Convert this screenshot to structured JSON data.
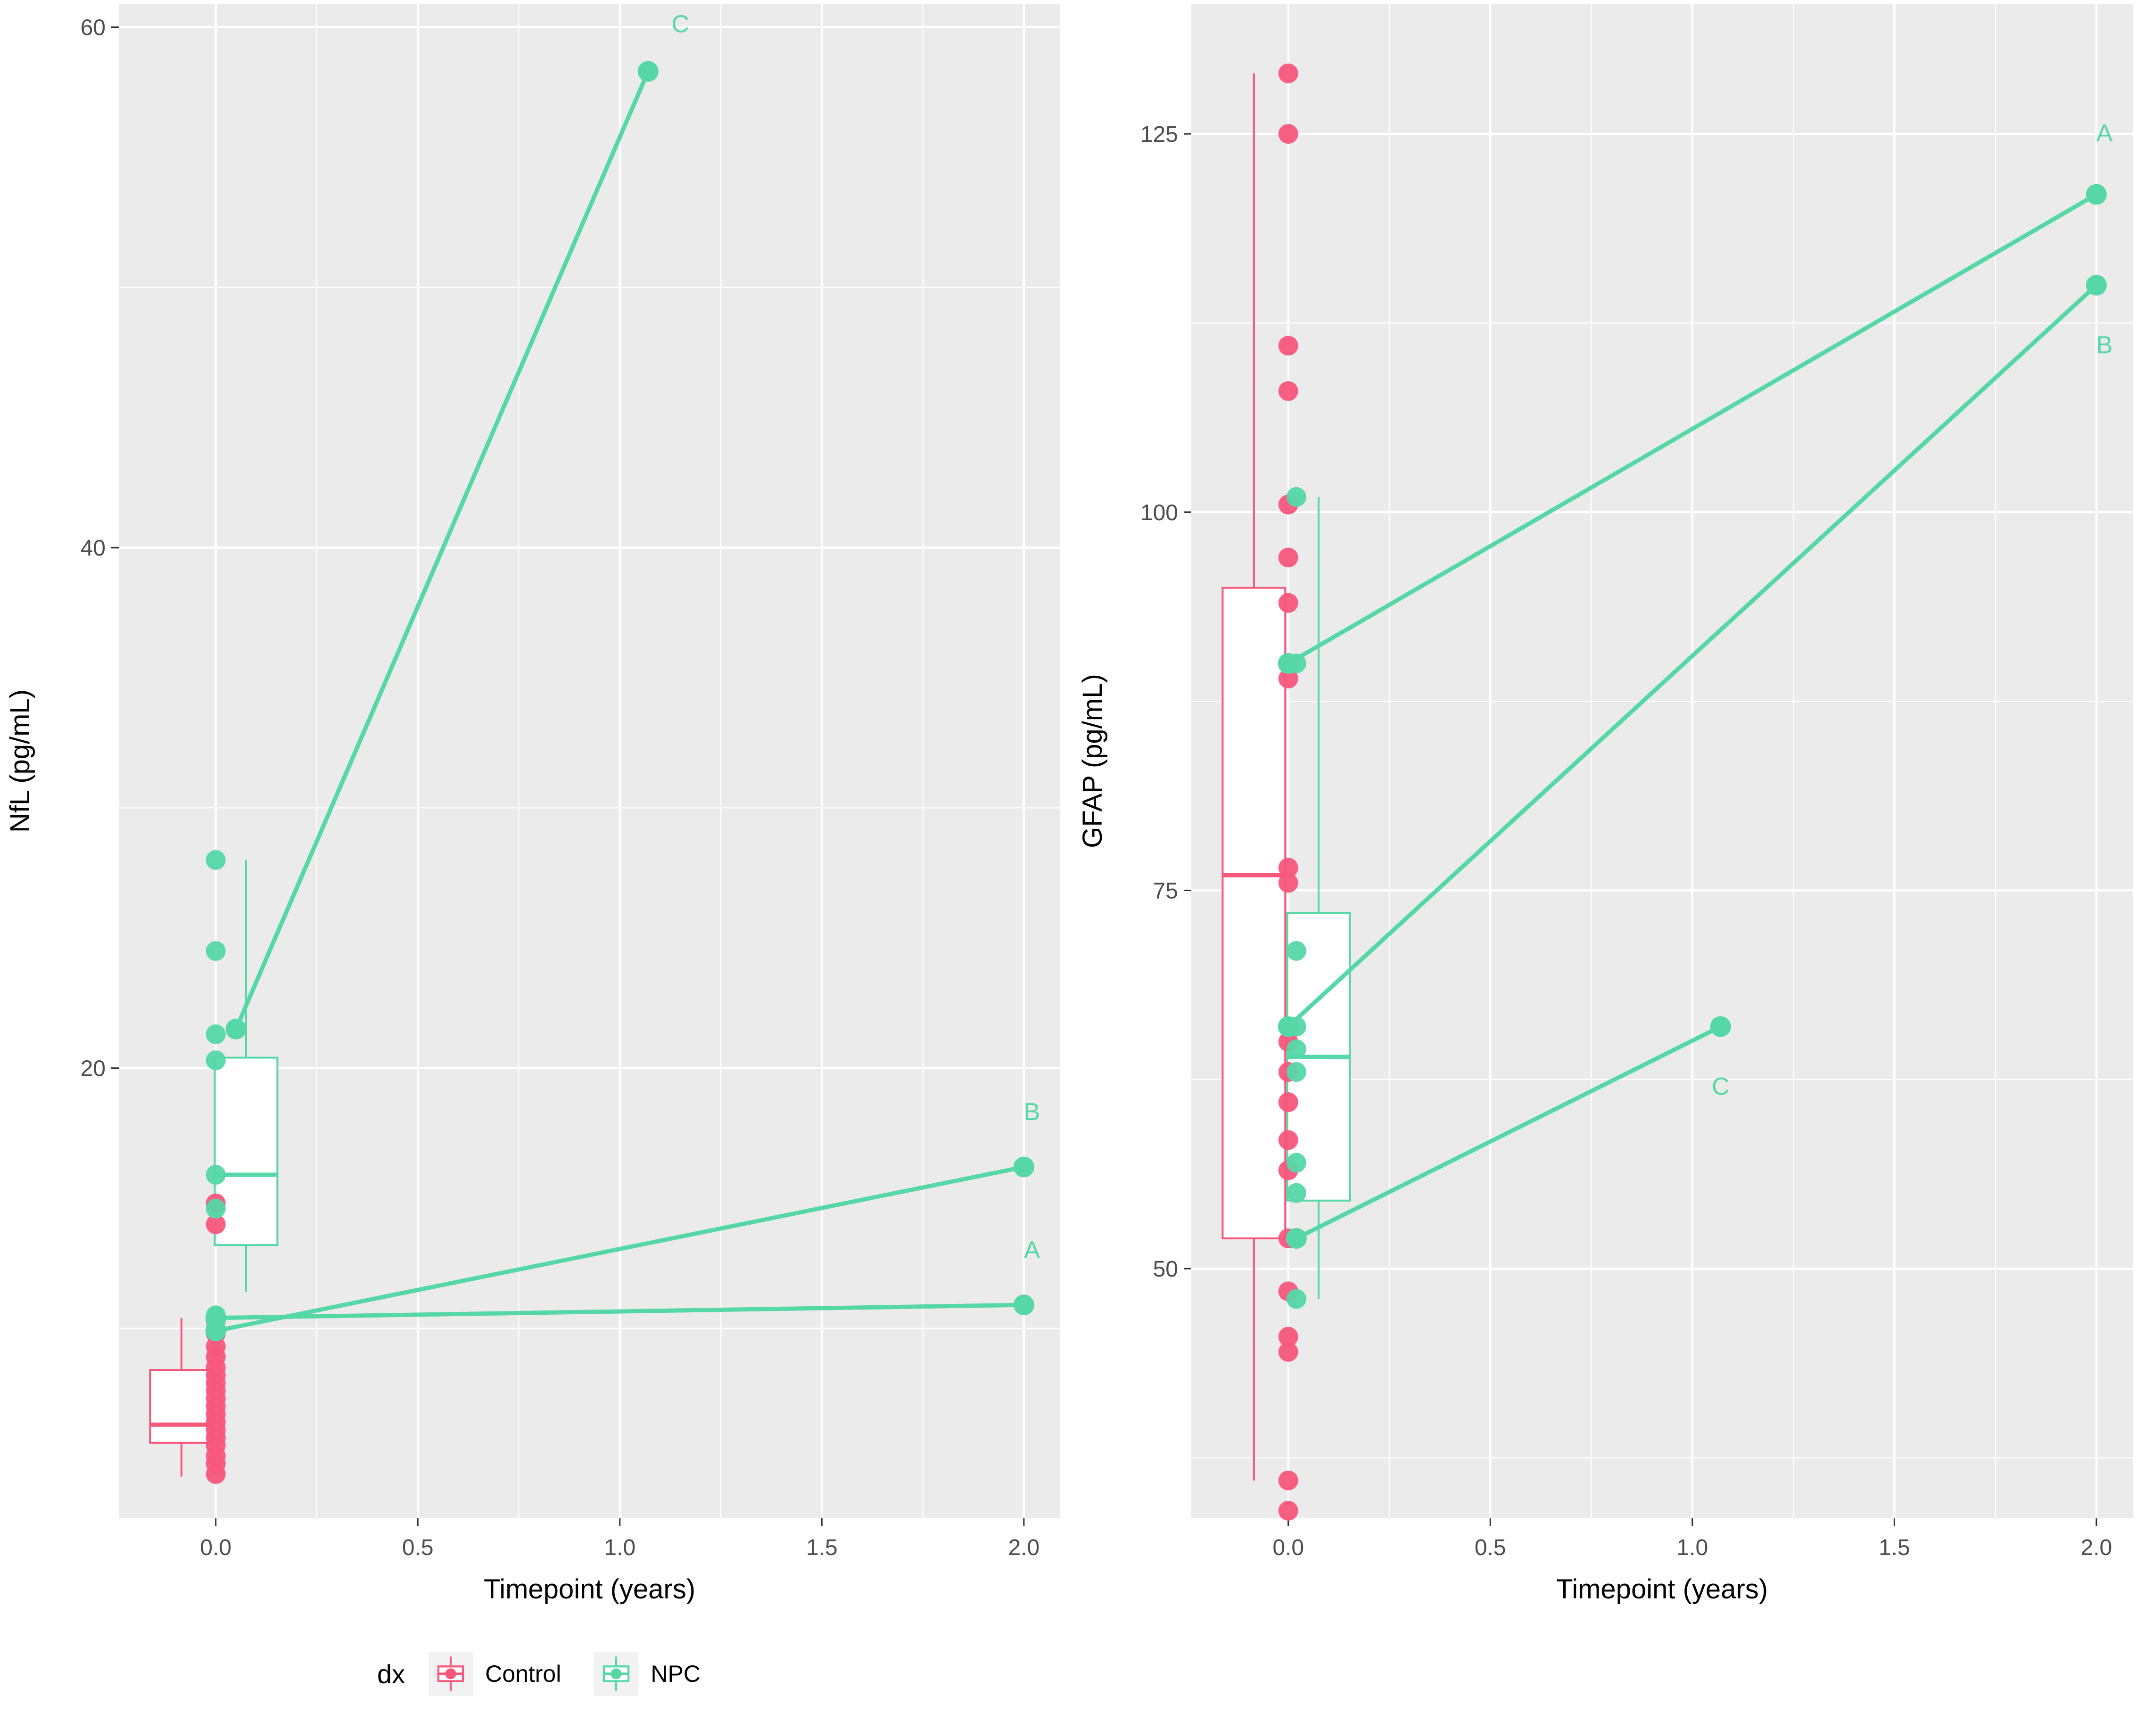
{
  "figure": {
    "background": "#FFFFFF"
  },
  "palette": {
    "control": "#F8577C",
    "npc": "#55D7A6",
    "panel_bg": "#EBEBEB",
    "grid": "#FFFFFF",
    "tick_text": "#4D4D4D",
    "axis_text": "#000000",
    "box_fill": "#FFFFFF"
  },
  "legend": {
    "title": "dx",
    "items": [
      {
        "id": "control",
        "label": "Control",
        "color": "#F8577C"
      },
      {
        "id": "npc",
        "label": "NPC",
        "color": "#55D7A6"
      }
    ]
  },
  "chart_data": [
    {
      "name": "nfl",
      "type": "boxplot-scatter-lines",
      "title": "",
      "xlabel": "Timepoint (years)",
      "ylabel": "NfL (pg/mL)",
      "xlim": [
        -0.24,
        2.09
      ],
      "ylim": [
        2.7,
        60.9
      ],
      "xticks": [
        [
          0.0,
          "0.0"
        ],
        [
          0.5,
          "0.5"
        ],
        [
          1.0,
          "1.0"
        ],
        [
          1.5,
          "1.5"
        ],
        [
          2.0,
          "2.0"
        ]
      ],
      "yticks": [
        [
          20,
          "20"
        ],
        [
          40,
          "40"
        ],
        [
          60,
          "60"
        ]
      ],
      "x_minor": [
        0.25,
        0.75,
        1.25,
        1.75
      ],
      "y_minor": [
        10,
        30,
        50
      ],
      "boxes": [
        {
          "group": "Control",
          "color_key": "control",
          "x": -0.085,
          "width": 0.155,
          "lower_whisker": 4.3,
          "q1": 5.6,
          "median": 6.3,
          "q3": 8.4,
          "upper_whisker": 10.4
        },
        {
          "group": "NPC",
          "color_key": "npc",
          "x": 0.075,
          "width": 0.155,
          "lower_whisker": 11.4,
          "q1": 13.2,
          "median": 15.9,
          "q3": 20.4,
          "upper_whisker": 28.0
        }
      ],
      "points": [
        {
          "group": "Control",
          "color_key": "control",
          "x": 0.0,
          "values": [
            14.8,
            14.0,
            10.3,
            9.8,
            9.3,
            8.9,
            8.5,
            8.2,
            7.9,
            7.6,
            7.3,
            7.0,
            6.7,
            6.4,
            6.1,
            5.8,
            5.5,
            5.1,
            4.8,
            4.4
          ]
        },
        {
          "group": "NPC",
          "color_key": "npc",
          "x": 0.0,
          "values": [
            28.0,
            24.5,
            21.3,
            20.3,
            15.9,
            14.6,
            10.5,
            10.0
          ]
        }
      ],
      "lines": [
        {
          "patient": "A",
          "color_key": "npc",
          "points": [
            [
              0.0,
              10.4
            ],
            [
              2.0,
              10.9
            ]
          ],
          "label": "A",
          "label_at": [
            2.02,
            12.7
          ]
        },
        {
          "patient": "B",
          "color_key": "npc",
          "points": [
            [
              0.0,
              9.9
            ],
            [
              2.0,
              16.2
            ]
          ],
          "label": "B",
          "label_at": [
            2.02,
            18.0
          ]
        },
        {
          "patient": "C",
          "color_key": "npc",
          "points": [
            [
              0.05,
              21.5
            ],
            [
              1.07,
              58.3
            ]
          ],
          "label": "C",
          "label_at": [
            1.15,
            59.8
          ]
        }
      ]
    },
    {
      "name": "gfap",
      "type": "boxplot-scatter-lines",
      "title": "",
      "xlabel": "Timepoint (years)",
      "ylabel": "GFAP (pg/mL)",
      "xlim": [
        -0.24,
        2.09
      ],
      "ylim": [
        33.5,
        133.6
      ],
      "xticks": [
        [
          0.0,
          "0.0"
        ],
        [
          0.5,
          "0.5"
        ],
        [
          1.0,
          "1.0"
        ],
        [
          1.5,
          "1.5"
        ],
        [
          2.0,
          "2.0"
        ]
      ],
      "yticks": [
        [
          50,
          "50"
        ],
        [
          75,
          "75"
        ],
        [
          100,
          "100"
        ],
        [
          125,
          "125"
        ]
      ],
      "x_minor": [
        0.25,
        0.75,
        1.25,
        1.75
      ],
      "y_minor": [
        37.5,
        62.5,
        87.5,
        112.5
      ],
      "boxes": [
        {
          "group": "Control",
          "color_key": "control",
          "x": -0.085,
          "width": 0.155,
          "lower_whisker": 36,
          "q1": 52,
          "median": 76,
          "q3": 95,
          "upper_whisker": 129
        },
        {
          "group": "NPC",
          "color_key": "npc",
          "x": 0.075,
          "width": 0.155,
          "lower_whisker": 48,
          "q1": 54.5,
          "median": 64,
          "q3": 73.5,
          "upper_whisker": 101
        }
      ],
      "points": [
        {
          "group": "Control",
          "color_key": "control",
          "x": 0.0,
          "values": [
            129,
            125,
            111,
            108,
            100.5,
            97,
            94,
            89,
            76.5,
            75.5,
            65,
            63,
            61,
            58.5,
            56.5,
            52,
            48.5,
            45.5,
            44.5,
            36,
            34
          ]
        },
        {
          "group": "NPC",
          "color_key": "npc",
          "x": 0.02,
          "values": [
            101,
            90,
            71,
            66,
            64.5,
            63,
            57,
            55,
            52,
            48
          ]
        }
      ],
      "lines": [
        {
          "patient": "A",
          "color_key": "npc",
          "points": [
            [
              0.0,
              90
            ],
            [
              2.0,
              121
            ]
          ],
          "label": "A",
          "label_at": [
            2.02,
            124.5
          ]
        },
        {
          "patient": "B",
          "color_key": "npc",
          "points": [
            [
              0.0,
              66
            ],
            [
              2.0,
              115
            ]
          ],
          "label": "B",
          "label_at": [
            2.02,
            110.5
          ]
        },
        {
          "patient": "C",
          "color_key": "npc",
          "points": [
            [
              0.02,
              52
            ],
            [
              1.07,
              66
            ]
          ],
          "label": "C",
          "label_at": [
            1.07,
            61.5
          ]
        }
      ]
    }
  ]
}
